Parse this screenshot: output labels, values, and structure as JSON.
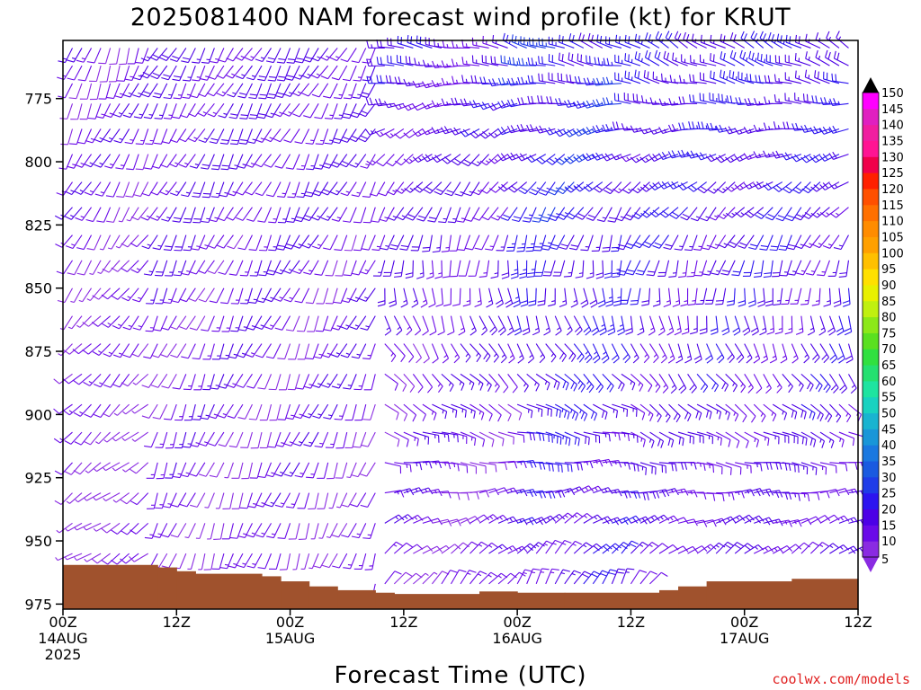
{
  "chart_data": {
    "type": "wind-barb profile",
    "title": "2025081400 NAM forecast wind profile (kt) for KRUT",
    "xlabel": "Forecast Time (UTC)",
    "ylabel": "",
    "units": "kt",
    "credit": "coolwx.com/models",
    "x_range_hours": [
      0,
      84
    ],
    "x_ticks": [
      {
        "hour": 0,
        "lines": [
          "00Z",
          "14AUG",
          "2025"
        ]
      },
      {
        "hour": 12,
        "lines": [
          "12Z"
        ]
      },
      {
        "hour": 24,
        "lines": [
          "00Z",
          "15AUG"
        ]
      },
      {
        "hour": 36,
        "lines": [
          "12Z"
        ]
      },
      {
        "hour": 48,
        "lines": [
          "00Z",
          "16AUG"
        ]
      },
      {
        "hour": 60,
        "lines": [
          "12Z"
        ]
      },
      {
        "hour": 72,
        "lines": [
          "00Z",
          "17AUG"
        ]
      },
      {
        "hour": 84,
        "lines": [
          "12Z"
        ]
      }
    ],
    "y_range_hPa": [
      752,
      977
    ],
    "y_ticks": [
      775,
      800,
      825,
      850,
      875,
      900,
      925,
      950,
      975
    ],
    "pressure_levels_hPa": [
      755,
      762,
      769,
      777,
      787,
      797,
      808,
      818,
      829,
      839,
      850,
      861,
      872,
      884,
      896,
      907,
      919,
      931,
      943,
      955,
      967
    ],
    "time_step_hours": 1,
    "regimes": [
      {
        "hours": [
          0,
          10
        ],
        "dir_low": 240,
        "dir_high": 200,
        "speed": 7
      },
      {
        "hours": [
          10,
          34
        ],
        "dir_low": 200,
        "dir_high": 210,
        "speed": 10
      },
      {
        "hours": [
          34,
          48
        ],
        "dir_low": 40,
        "dir_high": 280,
        "speed": 11
      },
      {
        "hours": [
          48,
          60
        ],
        "dir_low": 30,
        "dir_high": 290,
        "speed": 17
      },
      {
        "hours": [
          60,
          84
        ],
        "dir_low": 40,
        "dir_high": 300,
        "speed": 14
      }
    ],
    "terrain_surface_pressure_hPa": [
      {
        "hours": [
          0,
          10
        ],
        "p": 959.5
      },
      {
        "hours": [
          10,
          12
        ],
        "p": 960.5
      },
      {
        "hours": [
          12,
          14
        ],
        "p": 962
      },
      {
        "hours": [
          14,
          21
        ],
        "p": 963
      },
      {
        "hours": [
          21,
          23
        ],
        "p": 964
      },
      {
        "hours": [
          23,
          26
        ],
        "p": 966
      },
      {
        "hours": [
          26,
          29
        ],
        "p": 968
      },
      {
        "hours": [
          29,
          33
        ],
        "p": 969.5
      },
      {
        "hours": [
          33,
          35
        ],
        "p": 970.5
      },
      {
        "hours": [
          35,
          44
        ],
        "p": 971
      },
      {
        "hours": [
          44,
          48
        ],
        "p": 970
      },
      {
        "hours": [
          48,
          53
        ],
        "p": 970.5
      },
      {
        "hours": [
          53,
          63
        ],
        "p": 970.5
      },
      {
        "hours": [
          63,
          65
        ],
        "p": 969.5
      },
      {
        "hours": [
          65,
          68
        ],
        "p": 968
      },
      {
        "hours": [
          68,
          77
        ],
        "p": 966
      },
      {
        "hours": [
          77,
          84
        ],
        "p": 965
      }
    ],
    "terrain_color": "#a0522d",
    "colorbar": {
      "levels": [
        5,
        10,
        15,
        20,
        25,
        30,
        35,
        40,
        45,
        50,
        55,
        60,
        65,
        70,
        75,
        80,
        85,
        90,
        95,
        100,
        105,
        110,
        115,
        120,
        125,
        130,
        135,
        140,
        145,
        150
      ],
      "colors": [
        "#8a2be2",
        "#6a0ae8",
        "#4c00e6",
        "#2c14f0",
        "#1f3ce8",
        "#1a5ae0",
        "#1a78e0",
        "#1996d8",
        "#18b4d0",
        "#18d2c0",
        "#1ee4a0",
        "#24e070",
        "#30e040",
        "#5ae020",
        "#8ce818",
        "#c0f010",
        "#e8f000",
        "#ffe000",
        "#ffc000",
        "#ffa000",
        "#ff8c00",
        "#ff7000",
        "#ff5000",
        "#ff2000",
        "#f0004a",
        "#ff1493",
        "#f01ea0",
        "#e020c0",
        "#ff00ff",
        "#000000"
      ]
    }
  }
}
